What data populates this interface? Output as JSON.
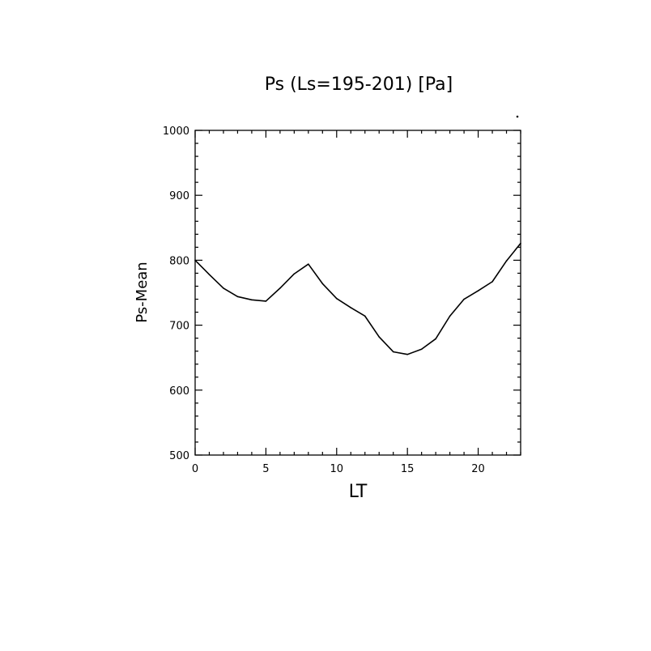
{
  "chart_data": {
    "type": "line",
    "title": "Ps (Ls=195-201) [Pa]",
    "xlabel": "LT",
    "ylabel": "Ps-Mean",
    "xlim": [
      0,
      23
    ],
    "ylim": [
      500,
      1000
    ],
    "x_ticks": [
      0,
      5,
      10,
      15,
      20
    ],
    "y_ticks": [
      500,
      600,
      700,
      800,
      900,
      1000
    ],
    "grid": false,
    "series": [
      {
        "x": [
          0,
          1,
          2,
          3,
          4,
          5,
          6,
          7,
          8,
          9,
          10,
          11,
          12,
          13,
          14,
          15,
          16,
          17,
          18,
          19,
          20,
          21,
          22,
          23
        ],
        "values": [
          800,
          778,
          757,
          744,
          739,
          737,
          757,
          779,
          794,
          764,
          741,
          727,
          714,
          682,
          659,
          655,
          663,
          679,
          714,
          740,
          753,
          767,
          799,
          826
        ],
        "color": "#000000"
      }
    ]
  }
}
